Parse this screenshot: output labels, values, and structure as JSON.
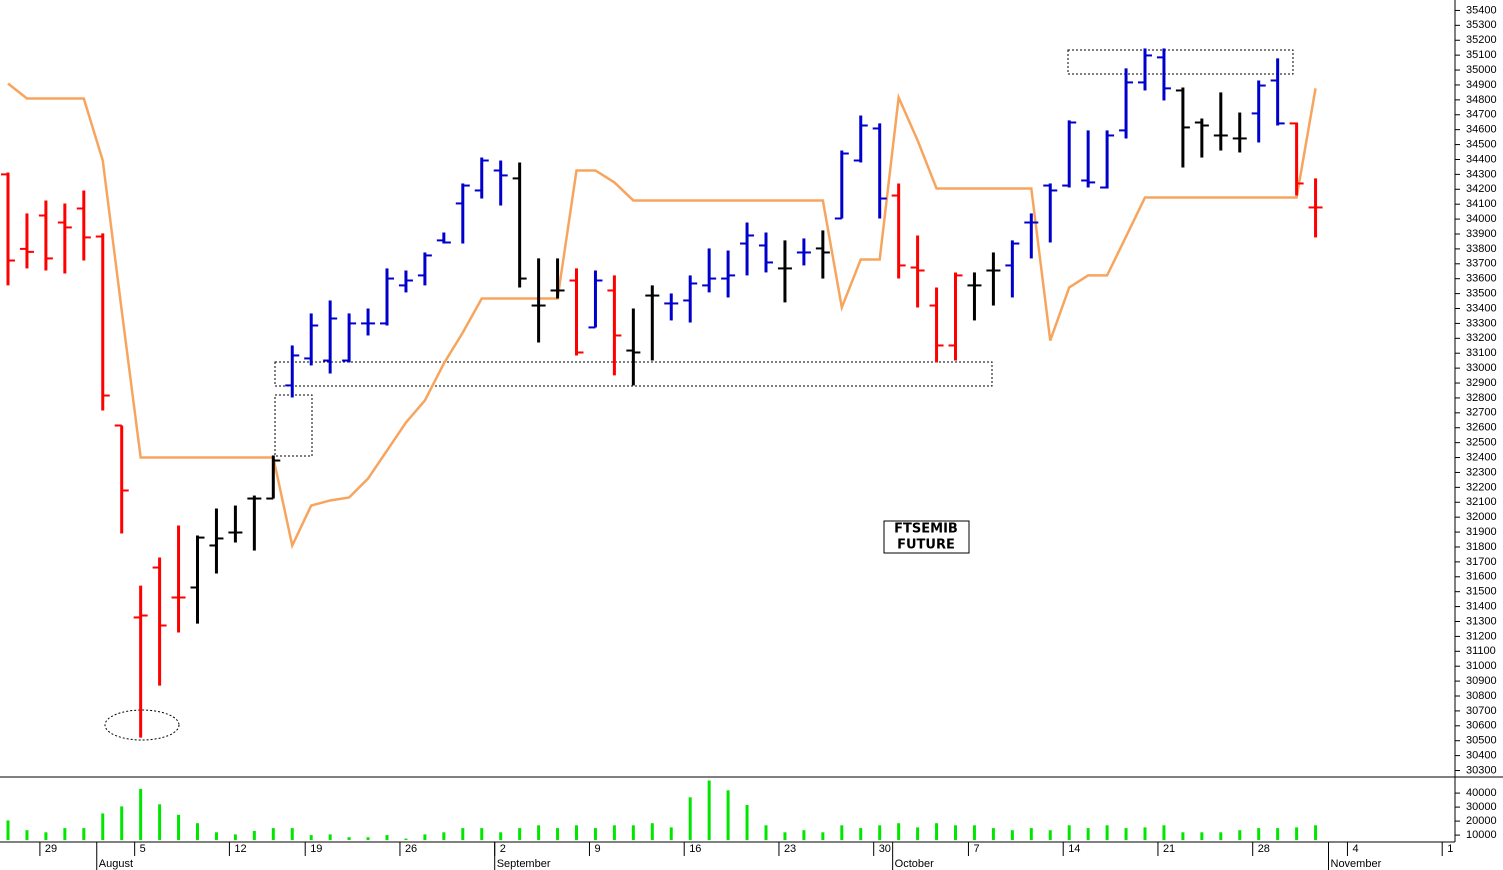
{
  "chart_data": {
    "type": "ohlc",
    "annotation": [
      "FTSEMIB",
      "FUTURE"
    ],
    "categories": [
      null,
      null,
      "29",
      null,
      null,
      null,
      null,
      "5",
      null,
      null,
      null,
      null,
      "12",
      null,
      null,
      null,
      "19",
      null,
      null,
      null,
      null,
      "26",
      null,
      null,
      null,
      null,
      "2",
      null,
      null,
      null,
      null,
      "9",
      null,
      null,
      null,
      null,
      "16",
      null,
      null,
      null,
      null,
      "23",
      null,
      null,
      null,
      null,
      "30",
      null,
      null,
      null,
      null,
      "7",
      null,
      null,
      null,
      null,
      "14",
      null,
      null,
      null,
      null,
      "21",
      null,
      null,
      null,
      null,
      "28",
      null,
      null,
      null,
      null,
      "4",
      null,
      null,
      null,
      null,
      "1"
    ],
    "months": [
      {
        "label": "August",
        "category": 5
      },
      {
        "label": "September",
        "category": 26
      },
      {
        "label": "October",
        "category": 47
      },
      {
        "label": "November",
        "category": 70
      }
    ],
    "open": [
      34300,
      33800,
      34024,
      33977,
      34071,
      33883,
      32615,
      31327,
      31662,
      31461,
      31528,
      31810,
      31897,
      32125,
      32125,
      32884,
      33065,
      33051,
      33051,
      33300,
      33300,
      33555,
      33622,
      33857,
      34105,
      34192,
      34326,
      34273,
      33420,
      33521,
      33588,
      33273,
      33521,
      33118,
      33487,
      33434,
      33454,
      33555,
      33601,
      33836,
      33823,
      33669,
      33776,
      33803,
      34004,
      34393,
      34608,
      34158,
      33675,
      33420,
      33152,
      33555,
      33655,
      33689,
      33977,
      34225,
      34225,
      34259,
      34212,
      34595,
      34917,
      35085,
      34863,
      34648,
      34561,
      34541,
      34709,
      34930,
      34642,
      34078,
      null,
      null,
      null,
      null,
      null,
      null,
      null
    ],
    "high": [
      34313,
      34038,
      34125,
      34105,
      34192,
      33904,
      32615,
      31541,
      31729,
      31944,
      31877,
      32058,
      32078,
      32145,
      32414,
      33152,
      33367,
      33454,
      33367,
      33400,
      33669,
      33655,
      33776,
      33910,
      34239,
      34413,
      34393,
      34380,
      33736,
      33736,
      33669,
      33655,
      33622,
      33400,
      33555,
      33501,
      33622,
      33803,
      33789,
      33977,
      33910,
      33857,
      33870,
      33924,
      34460,
      34695,
      34642,
      34239,
      33890,
      33541,
      33642,
      33642,
      33776,
      33857,
      34038,
      34239,
      34662,
      34595,
      34595,
      35011,
      35145,
      35145,
      34883,
      34675,
      34850,
      34715,
      34930,
      35078,
      34648,
      34273,
      null,
      null,
      null,
      null,
      null,
      null,
      null
    ],
    "low": [
      33555,
      33669,
      33655,
      33635,
      33722,
      32716,
      31890,
      30521,
      30870,
      31226,
      31286,
      31622,
      31830,
      31776,
      32125,
      32803,
      33018,
      32964,
      33038,
      33219,
      33286,
      33508,
      33555,
      33836,
      33836,
      34138,
      34091,
      33541,
      33172,
      33467,
      33085,
      33273,
      32951,
      32884,
      33051,
      33320,
      33306,
      33508,
      33474,
      33622,
      33642,
      33441,
      33689,
      33601,
      34004,
      34380,
      34004,
      33601,
      33407,
      33038,
      33051,
      33320,
      33420,
      33474,
      33736,
      33843,
      34212,
      34212,
      34205,
      34541,
      34863,
      34796,
      34346,
      34413,
      34460,
      34447,
      34514,
      34628,
      34158,
      33877,
      null,
      null,
      null,
      null,
      null,
      null,
      null
    ],
    "close": [
      33722,
      33780,
      33736,
      33944,
      33877,
      32816,
      32179,
      31340,
      31273,
      31461,
      31863,
      31857,
      31897,
      32125,
      32380,
      33085,
      33286,
      33333,
      33300,
      33300,
      33601,
      33588,
      33756,
      33843,
      34225,
      34393,
      34293,
      33601,
      33420,
      33521,
      33105,
      33588,
      33219,
      33105,
      33487,
      33434,
      33568,
      33601,
      33622,
      33890,
      33709,
      33669,
      33776,
      33776,
      34440,
      34628,
      34138,
      33689,
      33655,
      33152,
      33622,
      33555,
      33655,
      33836,
      33977,
      34192,
      34648,
      34246,
      34561,
      34917,
      35098,
      34877,
      34615,
      34628,
      34561,
      34541,
      34896,
      34642,
      34239,
      34078,
      null,
      null,
      null,
      null,
      null,
      null,
      null
    ],
    "bar_colors": [
      "#ff0000",
      "#ff0000",
      "#ff0000",
      "#ff0000",
      "#ff0000",
      "#ff0000",
      "#ff0000",
      "#ff0000",
      "#ff0000",
      "#ff0000",
      "#000000",
      "#000000",
      "#000000",
      "#000000",
      "#000000",
      "#0000cc",
      "#0000cc",
      "#0000cc",
      "#0000cc",
      "#0000cc",
      "#0000cc",
      "#0000cc",
      "#0000cc",
      "#0000cc",
      "#0000cc",
      "#0000cc",
      "#0000cc",
      "#000000",
      "#000000",
      "#000000",
      "#ff0000",
      "#0000cc",
      "#ff0000",
      "#000000",
      "#000000",
      "#0000cc",
      "#0000cc",
      "#0000cc",
      "#0000cc",
      "#0000cc",
      "#0000cc",
      "#000000",
      "#0000cc",
      "#000000",
      "#0000cc",
      "#0000cc",
      "#0000cc",
      "#ff0000",
      "#ff0000",
      "#ff0000",
      "#ff0000",
      "#000000",
      "#000000",
      "#0000cc",
      "#0000cc",
      "#0000cc",
      "#0000cc",
      "#0000cc",
      "#0000cc",
      "#0000cc",
      "#0000cc",
      "#0000cc",
      "#000000",
      "#000000",
      "#000000",
      "#000000",
      "#0000cc",
      "#0000cc",
      "#ff0000",
      "#ff0000",
      null,
      null,
      null,
      null,
      null,
      null,
      null
    ],
    "line": {
      "color": "#f7a55e",
      "values": [
        34910,
        34809,
        34809,
        34809,
        34809,
        34393,
        33387,
        32400,
        32400,
        32400,
        32400,
        32400,
        32400,
        32400,
        32400,
        31810,
        32078,
        32112,
        32132,
        32259,
        32447,
        32635,
        32783,
        33031,
        33239,
        33467,
        33467,
        33467,
        33467,
        33467,
        34326,
        34326,
        34246,
        34125,
        34125,
        34125,
        34125,
        34125,
        34125,
        34125,
        34125,
        34125,
        34125,
        34125,
        33407,
        33729,
        33729,
        34816,
        34528,
        34205,
        34205,
        34205,
        34205,
        34205,
        34205,
        33185,
        33541,
        33622,
        33622,
        33883,
        34145,
        34145,
        34145,
        34145,
        34145,
        34145,
        34145,
        34145,
        34145,
        34877,
        null,
        null,
        null,
        null,
        null,
        null,
        null
      ]
    },
    "ylim": [
      30270,
      35470
    ],
    "yticks": [
      30300,
      30400,
      30500,
      30600,
      30700,
      30800,
      30900,
      31000,
      31100,
      31200,
      31300,
      31400,
      31500,
      31600,
      31700,
      31800,
      31900,
      32000,
      32100,
      32200,
      32300,
      32400,
      32500,
      32600,
      32700,
      32800,
      32900,
      33000,
      33100,
      33200,
      33300,
      33400,
      33500,
      33600,
      33700,
      33800,
      33900,
      34000,
      34100,
      34200,
      34300,
      34400,
      34500,
      34600,
      34700,
      34800,
      34900,
      35000,
      35100,
      35200,
      35300,
      35400
    ],
    "volume": {
      "color": "#00e600",
      "ylim": [
        6500,
        51500
      ],
      "yticks": [
        10000,
        20000,
        30000,
        40000
      ],
      "values": [
        20500,
        13500,
        12000,
        15000,
        15000,
        25500,
        30500,
        43000,
        32000,
        24500,
        18500,
        12000,
        10500,
        13000,
        15000,
        15000,
        10000,
        10500,
        8500,
        8500,
        10000,
        7500,
        10500,
        12000,
        15000,
        15000,
        12000,
        15000,
        17000,
        15000,
        17000,
        15000,
        17000,
        17000,
        18500,
        15500,
        37000,
        49000,
        42000,
        31500,
        17000,
        12000,
        13500,
        12000,
        17000,
        15000,
        17000,
        18500,
        15500,
        18500,
        17000,
        17000,
        15000,
        13500,
        15000,
        13500,
        17000,
        15000,
        17000,
        15000,
        15500,
        17000,
        12000,
        12000,
        12000,
        13500,
        15000,
        15000,
        15500,
        17000,
        null,
        null,
        null,
        null,
        null,
        null,
        null
      ]
    }
  }
}
